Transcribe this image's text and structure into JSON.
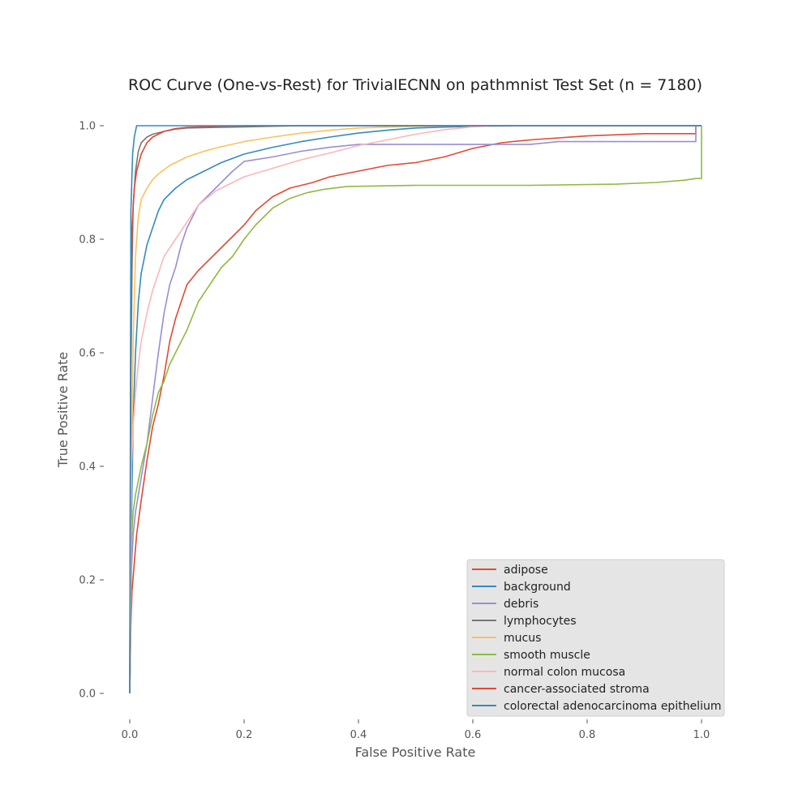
{
  "chart_data": {
    "type": "line",
    "title": "ROC Curve (One-vs-Rest) for TrivialECNN on pathmnist Test Set (n = 7180)",
    "xlabel": "False Positive Rate",
    "ylabel": "True Positive Rate",
    "xlim": [
      0.0,
      1.0
    ],
    "ylim": [
      0.0,
      1.0
    ],
    "x_ticks": [
      "0.0",
      "0.2",
      "0.4",
      "0.6",
      "0.8",
      "1.0"
    ],
    "y_ticks": [
      "0.0",
      "0.2",
      "0.4",
      "0.6",
      "0.8",
      "1.0"
    ],
    "grid": false,
    "legend_position": "lower-right",
    "series": [
      {
        "name": "adipose",
        "color": "#E24A33",
        "points": [
          [
            0,
            0
          ],
          [
            0.002,
            0.12
          ],
          [
            0.004,
            0.18
          ],
          [
            0.008,
            0.23
          ],
          [
            0.012,
            0.28
          ],
          [
            0.02,
            0.34
          ],
          [
            0.03,
            0.41
          ],
          [
            0.04,
            0.47
          ],
          [
            0.05,
            0.51
          ],
          [
            0.06,
            0.56
          ],
          [
            0.07,
            0.62
          ],
          [
            0.08,
            0.66
          ],
          [
            0.09,
            0.69
          ],
          [
            0.1,
            0.72
          ],
          [
            0.12,
            0.745
          ],
          [
            0.14,
            0.765
          ],
          [
            0.16,
            0.785
          ],
          [
            0.18,
            0.805
          ],
          [
            0.2,
            0.825
          ],
          [
            0.22,
            0.85
          ],
          [
            0.25,
            0.875
          ],
          [
            0.28,
            0.89
          ],
          [
            0.32,
            0.9
          ],
          [
            0.35,
            0.91
          ],
          [
            0.4,
            0.92
          ],
          [
            0.45,
            0.93
          ],
          [
            0.5,
            0.935
          ],
          [
            0.55,
            0.945
          ],
          [
            0.6,
            0.96
          ],
          [
            0.65,
            0.97
          ],
          [
            0.7,
            0.975
          ],
          [
            0.8,
            0.982
          ],
          [
            0.9,
            0.986
          ],
          [
            0.99,
            0.986
          ],
          [
            0.99,
            1.0
          ],
          [
            1.0,
            1.0
          ]
        ]
      },
      {
        "name": "background",
        "color": "#348ABD",
        "points": [
          [
            0,
            0
          ],
          [
            0.003,
            0.3
          ],
          [
            0.006,
            0.48
          ],
          [
            0.01,
            0.6
          ],
          [
            0.015,
            0.69
          ],
          [
            0.02,
            0.74
          ],
          [
            0.03,
            0.79
          ],
          [
            0.04,
            0.82
          ],
          [
            0.05,
            0.85
          ],
          [
            0.06,
            0.87
          ],
          [
            0.08,
            0.89
          ],
          [
            0.1,
            0.905
          ],
          [
            0.13,
            0.92
          ],
          [
            0.16,
            0.935
          ],
          [
            0.2,
            0.95
          ],
          [
            0.25,
            0.962
          ],
          [
            0.3,
            0.972
          ],
          [
            0.35,
            0.98
          ],
          [
            0.4,
            0.987
          ],
          [
            0.45,
            0.992
          ],
          [
            0.5,
            0.996
          ],
          [
            0.6,
            0.999
          ],
          [
            0.7,
            1.0
          ],
          [
            1.0,
            1.0
          ]
        ]
      },
      {
        "name": "debris",
        "color": "#988ED5",
        "points": [
          [
            0,
            0
          ],
          [
            0.003,
            0.22
          ],
          [
            0.006,
            0.28
          ],
          [
            0.01,
            0.32
          ],
          [
            0.02,
            0.38
          ],
          [
            0.03,
            0.44
          ],
          [
            0.04,
            0.52
          ],
          [
            0.05,
            0.6
          ],
          [
            0.06,
            0.67
          ],
          [
            0.07,
            0.72
          ],
          [
            0.08,
            0.75
          ],
          [
            0.09,
            0.79
          ],
          [
            0.1,
            0.82
          ],
          [
            0.12,
            0.86
          ],
          [
            0.14,
            0.88
          ],
          [
            0.16,
            0.9
          ],
          [
            0.18,
            0.92
          ],
          [
            0.2,
            0.937
          ],
          [
            0.25,
            0.945
          ],
          [
            0.3,
            0.955
          ],
          [
            0.35,
            0.962
          ],
          [
            0.4,
            0.967
          ],
          [
            0.5,
            0.967
          ],
          [
            0.7,
            0.967
          ],
          [
            0.75,
            0.972
          ],
          [
            0.99,
            0.972
          ],
          [
            0.99,
            1.0
          ],
          [
            1.0,
            1.0
          ]
        ]
      },
      {
        "name": "lymphocytes",
        "color": "#777777",
        "points": [
          [
            0,
            0
          ],
          [
            0.002,
            0.55
          ],
          [
            0.004,
            0.75
          ],
          [
            0.006,
            0.86
          ],
          [
            0.01,
            0.92
          ],
          [
            0.015,
            0.955
          ],
          [
            0.02,
            0.97
          ],
          [
            0.03,
            0.98
          ],
          [
            0.04,
            0.985
          ],
          [
            0.06,
            0.99
          ],
          [
            0.08,
            0.994
          ],
          [
            0.1,
            0.996
          ],
          [
            0.15,
            0.997
          ],
          [
            0.2,
            0.998
          ],
          [
            0.3,
            1.0
          ],
          [
            1.0,
            1.0
          ]
        ]
      },
      {
        "name": "mucus",
        "color": "#FBC15E",
        "points": [
          [
            0,
            0
          ],
          [
            0.003,
            0.4
          ],
          [
            0.006,
            0.62
          ],
          [
            0.01,
            0.77
          ],
          [
            0.015,
            0.84
          ],
          [
            0.02,
            0.87
          ],
          [
            0.03,
            0.89
          ],
          [
            0.04,
            0.905
          ],
          [
            0.05,
            0.915
          ],
          [
            0.07,
            0.93
          ],
          [
            0.1,
            0.945
          ],
          [
            0.13,
            0.955
          ],
          [
            0.16,
            0.963
          ],
          [
            0.2,
            0.972
          ],
          [
            0.25,
            0.98
          ],
          [
            0.3,
            0.987
          ],
          [
            0.35,
            0.992
          ],
          [
            0.4,
            0.996
          ],
          [
            0.5,
            0.999
          ],
          [
            0.6,
            1.0
          ],
          [
            1.0,
            1.0
          ]
        ]
      },
      {
        "name": "smooth muscle",
        "color": "#8EBA42",
        "points": [
          [
            0,
            0
          ],
          [
            0.003,
            0.27
          ],
          [
            0.006,
            0.32
          ],
          [
            0.01,
            0.35
          ],
          [
            0.02,
            0.4
          ],
          [
            0.03,
            0.44
          ],
          [
            0.04,
            0.49
          ],
          [
            0.05,
            0.53
          ],
          [
            0.06,
            0.55
          ],
          [
            0.07,
            0.58
          ],
          [
            0.08,
            0.6
          ],
          [
            0.1,
            0.64
          ],
          [
            0.12,
            0.69
          ],
          [
            0.14,
            0.72
          ],
          [
            0.16,
            0.75
          ],
          [
            0.18,
            0.77
          ],
          [
            0.2,
            0.8
          ],
          [
            0.22,
            0.825
          ],
          [
            0.25,
            0.855
          ],
          [
            0.28,
            0.872
          ],
          [
            0.31,
            0.882
          ],
          [
            0.34,
            0.888
          ],
          [
            0.38,
            0.893
          ],
          [
            0.5,
            0.895
          ],
          [
            0.7,
            0.895
          ],
          [
            0.85,
            0.897
          ],
          [
            0.92,
            0.9
          ],
          [
            0.97,
            0.904
          ],
          [
            0.99,
            0.907
          ],
          [
            1.0,
            0.907
          ],
          [
            1.0,
            1.0
          ]
        ]
      },
      {
        "name": "normal colon mucosa",
        "color": "#FFB5B8",
        "points": [
          [
            0,
            0
          ],
          [
            0.003,
            0.4
          ],
          [
            0.006,
            0.47
          ],
          [
            0.01,
            0.53
          ],
          [
            0.015,
            0.58
          ],
          [
            0.02,
            0.62
          ],
          [
            0.03,
            0.67
          ],
          [
            0.04,
            0.71
          ],
          [
            0.05,
            0.74
          ],
          [
            0.06,
            0.77
          ],
          [
            0.08,
            0.8
          ],
          [
            0.1,
            0.83
          ],
          [
            0.12,
            0.86
          ],
          [
            0.15,
            0.885
          ],
          [
            0.18,
            0.9
          ],
          [
            0.2,
            0.91
          ],
          [
            0.25,
            0.925
          ],
          [
            0.3,
            0.94
          ],
          [
            0.35,
            0.952
          ],
          [
            0.4,
            0.965
          ],
          [
            0.45,
            0.975
          ],
          [
            0.5,
            0.985
          ],
          [
            0.55,
            0.993
          ],
          [
            0.6,
            0.998
          ],
          [
            0.65,
            1.0
          ],
          [
            1.0,
            1.0
          ]
        ]
      },
      {
        "name": "cancer-associated stroma",
        "color": "#E24A33",
        "points": [
          [
            0,
            0
          ],
          [
            0.002,
            0.7
          ],
          [
            0.004,
            0.82
          ],
          [
            0.008,
            0.89
          ],
          [
            0.012,
            0.92
          ],
          [
            0.02,
            0.95
          ],
          [
            0.03,
            0.97
          ],
          [
            0.04,
            0.98
          ],
          [
            0.06,
            0.99
          ],
          [
            0.08,
            0.995
          ],
          [
            0.1,
            0.997
          ],
          [
            0.15,
            0.999
          ],
          [
            0.2,
            1.0
          ],
          [
            1.0,
            1.0
          ]
        ]
      },
      {
        "name": "colorectal adenocarcinoma epithelium",
        "color": "#348ABD",
        "points": [
          [
            0,
            0
          ],
          [
            0.002,
            0.85
          ],
          [
            0.005,
            0.95
          ],
          [
            0.008,
            0.98
          ],
          [
            0.012,
            1.0
          ],
          [
            1.0,
            1.0
          ]
        ]
      }
    ]
  }
}
